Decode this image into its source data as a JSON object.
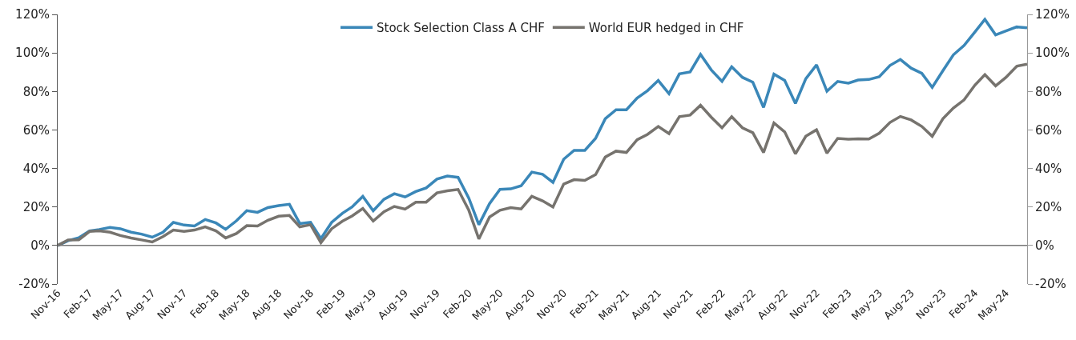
{
  "chart_data": {
    "type": "line",
    "x": [
      "2016-11",
      "2016-12",
      "2017-01",
      "2017-02",
      "2017-03",
      "2017-04",
      "2017-05",
      "2017-06",
      "2017-07",
      "2017-08",
      "2017-09",
      "2017-10",
      "2017-11",
      "2017-12",
      "2018-01",
      "2018-02",
      "2018-03",
      "2018-04",
      "2018-05",
      "2018-06",
      "2018-07",
      "2018-08",
      "2018-09",
      "2018-10",
      "2018-11",
      "2018-12",
      "2019-01",
      "2019-02",
      "2019-03",
      "2019-04",
      "2019-05",
      "2019-06",
      "2019-07",
      "2019-08",
      "2019-09",
      "2019-10",
      "2019-11",
      "2019-12",
      "2020-01",
      "2020-02",
      "2020-03",
      "2020-04",
      "2020-05",
      "2020-06",
      "2020-07",
      "2020-08",
      "2020-09",
      "2020-10",
      "2020-11",
      "2020-12",
      "2021-01",
      "2021-02",
      "2021-03",
      "2021-04",
      "2021-05",
      "2021-06",
      "2021-07",
      "2021-08",
      "2021-09",
      "2021-10",
      "2021-11",
      "2021-12",
      "2022-01",
      "2022-02",
      "2022-03",
      "2022-04",
      "2022-05",
      "2022-06",
      "2022-07",
      "2022-08",
      "2022-09",
      "2022-10",
      "2022-11",
      "2022-12",
      "2023-01",
      "2023-02",
      "2023-03",
      "2023-04",
      "2023-05",
      "2023-06",
      "2023-07",
      "2023-08",
      "2023-09",
      "2023-10",
      "2023-11",
      "2023-12",
      "2024-01",
      "2024-02",
      "2024-03",
      "2024-04",
      "2024-05",
      "2024-06",
      "2024-07"
    ],
    "series": [
      {
        "name": "Stock Selection Class A CHF",
        "color": "#3a87b8",
        "values": [
          0,
          2.5,
          4,
          7.6,
          8.3,
          9.4,
          8.7,
          6.9,
          5.9,
          4.3,
          6.9,
          12,
          10.6,
          10.1,
          13.5,
          11.7,
          8.4,
          12.8,
          18.1,
          17.2,
          19.7,
          20.7,
          21.4,
          11.4,
          12,
          3.6,
          12,
          16.7,
          20,
          25.5,
          18,
          24,
          26.9,
          25.2,
          28,
          29.9,
          34.5,
          36.1,
          35.4,
          24.6,
          10.8,
          21.8,
          29.1,
          29.4,
          31,
          38.1,
          37,
          32.8,
          44.8,
          49.4,
          49.4,
          55.6,
          65.8,
          70.5,
          70.5,
          76.6,
          80.4,
          85.7,
          78.8,
          89.1,
          90.1,
          99.2,
          91.2,
          85.2,
          92.8,
          87.3,
          84.8,
          71.7,
          89,
          85.7,
          73.8,
          86.6,
          93.8,
          80.1,
          85.2,
          84.3,
          85.9,
          86.2,
          87.6,
          93.5,
          96.6,
          92.1,
          89.4,
          82.1,
          90.8,
          99,
          103.9,
          110.8,
          117.4,
          109.4,
          111.4,
          113.5,
          113
        ]
      },
      {
        "name": "World EUR hedged in CHF",
        "color": "#76736e",
        "values": [
          0,
          2.9,
          3,
          7.3,
          7.6,
          6.9,
          5.2,
          3.9,
          2.9,
          1.8,
          4.6,
          8,
          7.3,
          8,
          9.7,
          7.6,
          3.9,
          6.2,
          10.3,
          10.1,
          13.1,
          15.2,
          15.6,
          9.7,
          10.8,
          1.5,
          8.7,
          12.6,
          15.3,
          19.2,
          12.7,
          17.5,
          20.3,
          18.9,
          22.5,
          22.5,
          27.3,
          28.4,
          29.1,
          18.3,
          3.4,
          14.8,
          18.3,
          19.7,
          19,
          25.5,
          23.2,
          20,
          31.9,
          34.2,
          33.8,
          36.8,
          45.9,
          49,
          48.3,
          54.9,
          57.7,
          61.8,
          58.1,
          66.9,
          67.7,
          72.8,
          66.6,
          61.1,
          66.9,
          61.1,
          58.6,
          48.3,
          63.6,
          59,
          47.6,
          56.7,
          60.1,
          47.9,
          55.6,
          55.2,
          55.4,
          55.3,
          58.3,
          63.9,
          67,
          65.2,
          61.8,
          56.7,
          65.9,
          71.4,
          75.6,
          83.2,
          88.7,
          82.9,
          87.3,
          93.1,
          94.2
        ]
      }
    ],
    "xlim": [
      "2016-11",
      "2024-07"
    ],
    "xticks": [
      {
        "value": "2016-11",
        "label": "Nov-16"
      },
      {
        "value": "2017-02",
        "label": "Feb-17"
      },
      {
        "value": "2017-05",
        "label": "May-17"
      },
      {
        "value": "2017-08",
        "label": "Aug-17"
      },
      {
        "value": "2017-11",
        "label": "Nov-17"
      },
      {
        "value": "2018-02",
        "label": "Feb-18"
      },
      {
        "value": "2018-05",
        "label": "May-18"
      },
      {
        "value": "2018-08",
        "label": "Aug-18"
      },
      {
        "value": "2018-11",
        "label": "Nov-18"
      },
      {
        "value": "2019-02",
        "label": "Feb-19"
      },
      {
        "value": "2019-05",
        "label": "May-19"
      },
      {
        "value": "2019-08",
        "label": "Aug-19"
      },
      {
        "value": "2019-11",
        "label": "Nov-19"
      },
      {
        "value": "2020-02",
        "label": "Feb-20"
      },
      {
        "value": "2020-05",
        "label": "May-20"
      },
      {
        "value": "2020-08",
        "label": "Aug-20"
      },
      {
        "value": "2020-11",
        "label": "Nov-20"
      },
      {
        "value": "2021-02",
        "label": "Feb-21"
      },
      {
        "value": "2021-05",
        "label": "May-21"
      },
      {
        "value": "2021-08",
        "label": "Aug-21"
      },
      {
        "value": "2021-11",
        "label": "Nov-21"
      },
      {
        "value": "2022-02",
        "label": "Feb-22"
      },
      {
        "value": "2022-05",
        "label": "May-22"
      },
      {
        "value": "2022-08",
        "label": "Aug-22"
      },
      {
        "value": "2022-11",
        "label": "Nov-22"
      },
      {
        "value": "2023-02",
        "label": "Feb-23"
      },
      {
        "value": "2023-05",
        "label": "May-23"
      },
      {
        "value": "2023-08",
        "label": "Aug-23"
      },
      {
        "value": "2023-11",
        "label": "Nov-23"
      },
      {
        "value": "2024-02",
        "label": "Feb-24"
      },
      {
        "value": "2024-05",
        "label": "May-24"
      }
    ],
    "ylim": [
      -20,
      120
    ],
    "yticks": [
      {
        "value": -20,
        "label": "-20%"
      },
      {
        "value": 0,
        "label": "0%"
      },
      {
        "value": 20,
        "label": "20%"
      },
      {
        "value": 40,
        "label": "40%"
      },
      {
        "value": 60,
        "label": "60%"
      },
      {
        "value": 80,
        "label": "80%"
      },
      {
        "value": 100,
        "label": "100%"
      },
      {
        "value": 120,
        "label": "120%"
      }
    ],
    "y2lim": [
      -20,
      120
    ],
    "y2ticks": [
      {
        "value": -20,
        "label": "-20%"
      },
      {
        "value": 0,
        "label": "0%"
      },
      {
        "value": 20,
        "label": "20%"
      },
      {
        "value": 40,
        "label": "40%"
      },
      {
        "value": 60,
        "label": "60%"
      },
      {
        "value": 80,
        "label": "80%"
      },
      {
        "value": 100,
        "label": "100%"
      },
      {
        "value": 120,
        "label": "120%"
      }
    ],
    "ref_lines": [
      {
        "axis": "y",
        "value": 0,
        "color": "#777777"
      }
    ],
    "grid": false,
    "legend": "top",
    "marker": "none",
    "line_style": "solid"
  }
}
